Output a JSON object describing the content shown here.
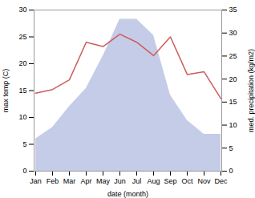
{
  "chart_data": {
    "type": "line",
    "xlabel": "date (month)",
    "ylabel": "max temp (C)",
    "y2label": "med. precipitation (kg/m2)",
    "categories": [
      "Jan",
      "Feb",
      "Mar",
      "Apr",
      "May",
      "Jun",
      "Jul",
      "Aug",
      "Sep",
      "Oct",
      "Nov",
      "Dec"
    ],
    "ylim": [
      0,
      30
    ],
    "yticks": [
      0,
      5,
      10,
      15,
      20,
      25,
      30
    ],
    "y2lim": [
      0,
      35
    ],
    "y2ticks": [
      0,
      5,
      10,
      15,
      20,
      25,
      30,
      35
    ],
    "series": [
      {
        "type": "area",
        "axis": "y2",
        "color": "#c5cce8",
        "values": [
          7.0,
          9.5,
          14.0,
          18.0,
          25.0,
          33.0,
          33.0,
          29.5,
          16.5,
          11.0,
          8.0,
          8.0
        ]
      },
      {
        "type": "line",
        "color": "#cd5c5c",
        "values": [
          14.5,
          15.2,
          17.0,
          24.0,
          23.2,
          25.5,
          24.0,
          21.5,
          25.0,
          18.0,
          18.5,
          13.5
        ]
      }
    ]
  }
}
